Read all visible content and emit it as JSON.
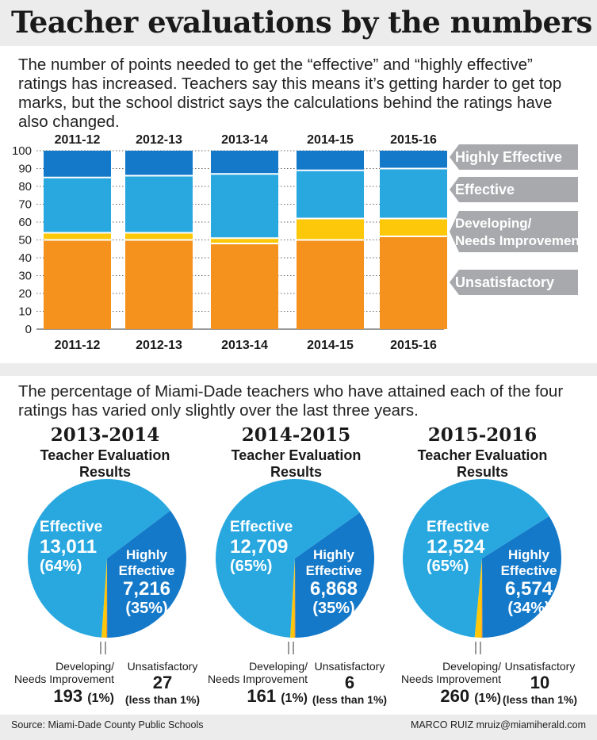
{
  "title": "Teacher evaluations by the numbers",
  "intro1": "The number of points needed to get the “effective” and “highly effective” ratings has increased. Teachers say this means it’s getting harder to get top marks, but the school district says the calculations behind the ratings have also changed.",
  "intro2": "The percentage of Miami-Dade teachers who have attained each of the four ratings has varied only slightly over the last three years.",
  "colors": {
    "highly": "#1479c9",
    "effective": "#29a8e0",
    "developing": "#fdc70a",
    "unsatisfactory": "#f5921e",
    "legend_bg": "#a7a9ac"
  },
  "chart_data": [
    {
      "type": "bar",
      "stacked": true,
      "categories": [
        "2011-12",
        "2012-13",
        "2013-14",
        "2014-15",
        "2015-16"
      ],
      "ylim": [
        0,
        100
      ],
      "yticks": [
        0,
        10,
        20,
        30,
        40,
        50,
        60,
        70,
        80,
        90,
        100
      ],
      "segments": [
        "Unsatisfactory",
        "Developing/ Needs Improvement",
        "Effective",
        "Highly Effective"
      ],
      "thresholds": {
        "developing_start": [
          50,
          50,
          48,
          50,
          52
        ],
        "effective_start": [
          54,
          54,
          51,
          62,
          62
        ],
        "highly_start": [
          85,
          86,
          87,
          89,
          90
        ]
      },
      "legend": [
        {
          "label": "Highly Effective",
          "lines": [
            "Highly Effective"
          ]
        },
        {
          "label": "Effective",
          "lines": [
            "Effective"
          ]
        },
        {
          "label": "Developing/ Needs Improvement",
          "lines": [
            "Developing/",
            "Needs Improvement"
          ]
        },
        {
          "label": "Unsatisfactory",
          "lines": [
            "Unsatisfactory"
          ]
        }
      ]
    },
    {
      "type": "pie",
      "year": "2013-2014",
      "subtitle1": "Teacher Evaluation",
      "subtitle2": "Results",
      "slices": [
        {
          "name": "Effective",
          "value": 13011,
          "display": "13,011",
          "pct": "(64%)"
        },
        {
          "name": "Highly Effective",
          "value": 7216,
          "display": "7,216",
          "pct": "(35%)"
        },
        {
          "name": "Developing/ Needs Improvement",
          "value": 193,
          "display": "193",
          "pct": "(1%)"
        },
        {
          "name": "Unsatisfactory",
          "value": 27,
          "display": "27",
          "pct": "(less than 1%)"
        }
      ]
    },
    {
      "type": "pie",
      "year": "2014-2015",
      "subtitle1": "Teacher Evaluation",
      "subtitle2": "Results",
      "slices": [
        {
          "name": "Effective",
          "value": 12709,
          "display": "12,709",
          "pct": "(65%)"
        },
        {
          "name": "Highly Effective",
          "value": 6868,
          "display": "6,868",
          "pct": "(35%)"
        },
        {
          "name": "Developing/ Needs Improvement",
          "value": 161,
          "display": "161",
          "pct": "(1%)"
        },
        {
          "name": "Unsatisfactory",
          "value": 6,
          "display": "6",
          "pct": "(less than 1%)"
        }
      ]
    },
    {
      "type": "pie",
      "year": "2015-2016",
      "subtitle1": "Teacher Evaluation",
      "subtitle2": "Results",
      "slices": [
        {
          "name": "Effective",
          "value": 12524,
          "display": "12,524",
          "pct": "(65%)"
        },
        {
          "name": "Highly Effective",
          "value": 6574,
          "display": "6,574",
          "pct": "(34%)"
        },
        {
          "name": "Developing/ Needs Improvement",
          "value": 260,
          "display": "260",
          "pct": "(1%)"
        },
        {
          "name": "Unsatisfactory",
          "value": 10,
          "display": "10",
          "pct": "(less than 1%)"
        }
      ]
    }
  ],
  "pie_labels": {
    "effective": "Effective",
    "highly1": "Highly",
    "highly2": "Effective",
    "developing1": "Developing/",
    "developing2": "Needs Improvement",
    "unsatisfactory": "Unsatisfactory"
  },
  "source": "Source: Miami-Dade County Public Schools",
  "credit": "MARCO RUIZ mruiz@miamiherald.com"
}
